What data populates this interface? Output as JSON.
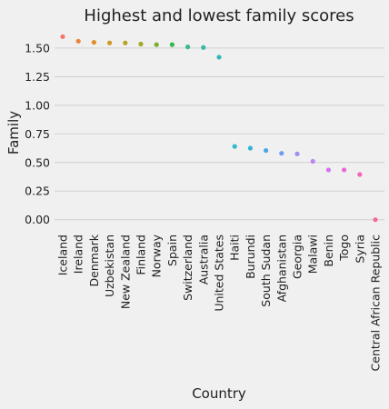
{
  "chart_data": {
    "type": "scatter",
    "title": "Highest and lowest family scores",
    "xlabel": "Country",
    "ylabel": "Family",
    "ylim": [
      -0.05,
      1.65
    ],
    "yticks": [
      "0.00",
      "0.25",
      "0.50",
      "0.75",
      "1.00",
      "1.25",
      "1.50"
    ],
    "ytick_values": [
      0,
      0.25,
      0.5,
      0.75,
      1.0,
      1.25,
      1.5
    ],
    "grid": "horizontal",
    "categories": [
      "Iceland",
      "Ireland",
      "Denmark",
      "Uzbekistan",
      "New Zealand",
      "Finland",
      "Norway",
      "Spain",
      "Switzerland",
      "Australia",
      "United States",
      "Haiti",
      "Burundi",
      "South Sudan",
      "Afghanistan",
      "Georgia",
      "Malawi",
      "Benin",
      "Togo",
      "Syria",
      "Central African Republic"
    ],
    "values": [
      1.6,
      1.56,
      1.55,
      1.545,
      1.545,
      1.535,
      1.53,
      1.53,
      1.51,
      1.505,
      1.42,
      0.64,
      0.625,
      0.605,
      0.58,
      0.575,
      0.51,
      0.435,
      0.435,
      0.395,
      0.0
    ],
    "colors": [
      "#f7756d",
      "#ec8342",
      "#de8f26",
      "#cd9a21",
      "#b8a224",
      "#a1aa26",
      "#79b226",
      "#35b84e",
      "#38bb86",
      "#36b8a3",
      "#35b5b8",
      "#33b9c9",
      "#34b2d6",
      "#4aa6e9",
      "#6e9cf4",
      "#9a8ff3",
      "#b984f3",
      "#d574ed",
      "#ea67d7",
      "#f565b8",
      "#f46c93"
    ]
  }
}
